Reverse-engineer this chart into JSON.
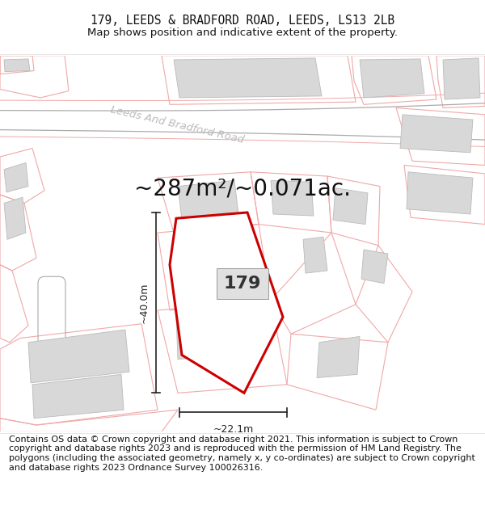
{
  "title_line1": "179, LEEDS & BRADFORD ROAD, LEEDS, LS13 2LB",
  "title_line2": "Map shows position and indicative extent of the property.",
  "area_text": "~287m²/~0.071ac.",
  "label_179": "179",
  "dim_width": "~22.1m",
  "dim_height": "~40.0m",
  "road_label": "Leeds And Bradford Road",
  "footer_text": "Contains OS data © Crown copyright and database right 2021. This information is subject to Crown copyright and database rights 2023 and is reproduced with the permission of HM Land Registry. The polygons (including the associated geometry, namely x, y co-ordinates) are subject to Crown copyright and database rights 2023 Ordnance Survey 100026316.",
  "bg_color": "#ffffff",
  "plot_red": "#cc0000",
  "pink_line": "#f0a8a8",
  "gray_road": "#aaaaaa",
  "bld_fill": "#d8d8d8",
  "bld_edge": "#bbbbbb",
  "title_fontsize": 10.5,
  "subtitle_fontsize": 9.5,
  "area_fontsize": 20,
  "dim_fontsize": 9,
  "label_fontsize": 16,
  "footer_fontsize": 8.0,
  "road_label_color": "#bbbbbb",
  "road_label_size": 9.5,
  "road_label_rotation": -13
}
